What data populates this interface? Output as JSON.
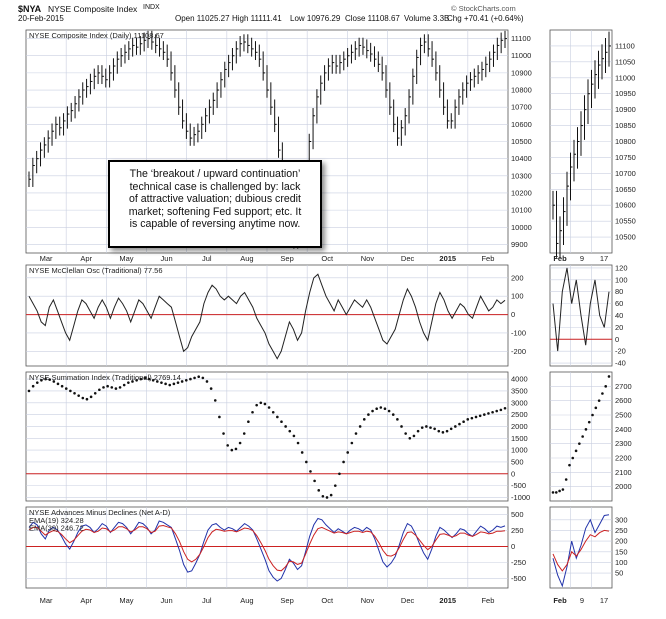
{
  "header": {
    "symbol": "$NYA",
    "name": "NYSE Composite Index",
    "exchange": "INDX",
    "date": "20-Feb-2015",
    "source": "© StockCharts.com",
    "quote": {
      "open": "Open 11025.27",
      "high": "High 11111.41",
      "low": "Low 10976.29",
      "close": "Close 11108.67",
      "volume": "Volume 3.3B",
      "change": "Chg +70.41 (+0.64%)"
    }
  },
  "annotation": {
    "lines": [
      "The ‘breakout / upward continuation’",
      "technical case is challenged by: lack",
      "of attractive valuation; dubious credit",
      "market; softening Fed support; etc. It",
      "is capable of reversing anytime now."
    ]
  },
  "colors": {
    "grid": "#c9cfe0",
    "price": "#111111",
    "zero_line": "#cc2222",
    "ema19": "#2233aa",
    "ema39": "#cc2222",
    "ad": "#2233aa"
  },
  "chart_data": [
    {
      "type": "ohlc",
      "title": "NYSE Composite Index (Daily) 11108.67",
      "months": [
        "Mar",
        "Apr",
        "May",
        "Jun",
        "Jul",
        "Aug",
        "Sep",
        "Oct",
        "Nov",
        "Dec",
        "2015",
        "Feb"
      ],
      "ylim": [
        9850,
        11150
      ],
      "yticks": [
        9900,
        10000,
        10100,
        10200,
        10300,
        10400,
        10500,
        10600,
        10700,
        10800,
        10900,
        11000,
        11100
      ],
      "close_series": [
        10280,
        10360,
        10400,
        10450,
        10480,
        10520,
        10560,
        10600,
        10580,
        10620,
        10660,
        10680,
        10720,
        10760,
        10800,
        10820,
        10850,
        10880,
        10900,
        10880,
        10860,
        10900,
        10940,
        10980,
        11000,
        11020,
        11040,
        11060,
        11050,
        11070,
        11090,
        11100,
        11080,
        11060,
        11040,
        11020,
        10980,
        10900,
        10800,
        10700,
        10620,
        10560,
        10520,
        10540,
        10560,
        10600,
        10650,
        10700,
        10740,
        10800,
        10860,
        10920,
        10960,
        11000,
        11040,
        11070,
        11080,
        11060,
        11040,
        11020,
        10980,
        10900,
        10800,
        10700,
        10600,
        10450,
        10300,
        10150,
        10000,
        9920,
        9960,
        10100,
        10300,
        10500,
        10650,
        10760,
        10840,
        10900,
        10940,
        10960,
        10940,
        10960,
        10980,
        11000,
        11020,
        11040,
        11060,
        11050,
        11030,
        11010,
        10980,
        10950,
        10900,
        10800,
        10700,
        10600,
        10520,
        10580,
        10650,
        10760,
        10880,
        10990,
        11060,
        11080,
        11040,
        10980,
        10900,
        10800,
        10700,
        10620,
        10620,
        10700,
        10760,
        10800,
        10840,
        10860,
        10880,
        10900,
        10920,
        10950,
        10980,
        11020,
        11060,
        11090,
        11100
      ]
    },
    {
      "type": "line",
      "title": "NYSE McClellan Osc (Traditional) 77.56",
      "ylim": [
        -280,
        270
      ],
      "yticks": [
        -200,
        -100,
        0,
        100,
        200
      ],
      "zero_line": 0,
      "values": [
        100,
        60,
        20,
        -40,
        -60,
        40,
        80,
        20,
        -40,
        -100,
        -140,
        -60,
        20,
        80,
        60,
        20,
        -20,
        40,
        80,
        40,
        -20,
        40,
        90,
        60,
        20,
        -40,
        20,
        80,
        60,
        20,
        -20,
        40,
        100,
        80,
        60,
        40,
        -40,
        -120,
        -200,
        -180,
        -120,
        -80,
        -40,
        60,
        120,
        160,
        140,
        100,
        80,
        100,
        80,
        60,
        100,
        120,
        80,
        40,
        -20,
        -60,
        -100,
        -160,
        -200,
        -240,
        -200,
        -120,
        -40,
        -80,
        -140,
        -100,
        20,
        120,
        200,
        220,
        160,
        100,
        60,
        20,
        80,
        40,
        0,
        40,
        80,
        60,
        40,
        80,
        40,
        -20,
        -80,
        -140,
        -160,
        -120,
        -80,
        0,
        80,
        140,
        100,
        40,
        -40,
        -100,
        -140,
        -40,
        60,
        120,
        80,
        20,
        -20,
        20,
        60,
        40,
        0,
        -20,
        40,
        100,
        60,
        20,
        40,
        80,
        60,
        78
      ]
    },
    {
      "type": "scatter",
      "title": "NYSE Summation Index (Traditional) 2769.14",
      "ylim": [
        -1150,
        4300
      ],
      "yticks": [
        -1000,
        -500,
        0,
        500,
        1000,
        1500,
        2000,
        2500,
        3000,
        3500,
        4000
      ],
      "zero_line": 0,
      "values": [
        3500,
        3700,
        3850,
        3950,
        4000,
        3980,
        3900,
        3800,
        3700,
        3600,
        3500,
        3400,
        3300,
        3200,
        3150,
        3250,
        3400,
        3550,
        3650,
        3700,
        3650,
        3600,
        3650,
        3750,
        3850,
        3900,
        3950,
        4000,
        4050,
        4000,
        3950,
        3900,
        3850,
        3800,
        3750,
        3800,
        3850,
        3900,
        3950,
        4000,
        4050,
        4100,
        4050,
        3900,
        3600,
        3100,
        2400,
        1700,
        1200,
        1000,
        1050,
        1300,
        1700,
        2200,
        2600,
        2900,
        3000,
        2950,
        2800,
        2600,
        2400,
        2200,
        2000,
        1800,
        1600,
        1300,
        900,
        500,
        100,
        -300,
        -700,
        -950,
        -1000,
        -900,
        -500,
        0,
        500,
        900,
        1300,
        1700,
        2000,
        2300,
        2500,
        2650,
        2750,
        2800,
        2750,
        2650,
        2500,
        2300,
        2000,
        1700,
        1500,
        1600,
        1800,
        1950,
        2000,
        1950,
        1900,
        1800,
        1750,
        1800,
        1900,
        2000,
        2100,
        2200,
        2300,
        2350,
        2400,
        2450,
        2500,
        2550,
        2600,
        2650,
        2700,
        2769
      ]
    },
    {
      "type": "line",
      "title": "NYSE Advances Minus Declines (Net A-D)",
      "ylim": [
        -650,
        620
      ],
      "yticks": [
        -500,
        -250,
        0,
        250,
        500
      ],
      "zero_line": 0,
      "series": [
        {
          "name": "EMA(19) 324.28",
          "color": "#2233aa",
          "values": [
            300,
            380,
            340,
            200,
            120,
            260,
            300,
            260,
            160,
            40,
            -40,
            80,
            220,
            320,
            340,
            300,
            220,
            280,
            360,
            320,
            220,
            300,
            380,
            360,
            300,
            200,
            280,
            380,
            360,
            300,
            200,
            260,
            400,
            380,
            340,
            300,
            120,
            -60,
            -280,
            -400,
            -380,
            -260,
            -120,
            80,
            260,
            340,
            360,
            300,
            260,
            300,
            280,
            240,
            300,
            360,
            320,
            260,
            120,
            -40,
            -200,
            -380,
            -480,
            -540,
            -500,
            -360,
            -200,
            -260,
            -360,
            -300,
            -80,
            160,
            340,
            440,
            420,
            340,
            280,
            220,
            280,
            240,
            200,
            260,
            300,
            280,
            240,
            300,
            260,
            120,
            -60,
            -240,
            -320,
            -260,
            -160,
            20,
            220,
            360,
            320,
            200,
            40,
            -100,
            -200,
            -40,
            160,
            300,
            260,
            200,
            140,
            200,
            280,
            260,
            200,
            160,
            240,
            320,
            280,
            220,
            260,
            320,
            300,
            324
          ]
        },
        {
          "name": "EMA(39) 246.72",
          "color": "#cc2222",
          "values": [
            260,
            300,
            300,
            240,
            180,
            220,
            250,
            240,
            190,
            120,
            60,
            100,
            170,
            240,
            270,
            260,
            220,
            240,
            290,
            280,
            230,
            260,
            310,
            310,
            280,
            230,
            260,
            310,
            310,
            280,
            220,
            240,
            320,
            330,
            310,
            290,
            200,
            80,
            -80,
            -200,
            -240,
            -200,
            -120,
            0,
            140,
            230,
            270,
            260,
            240,
            250,
            250,
            230,
            260,
            290,
            280,
            250,
            170,
            60,
            -60,
            -200,
            -300,
            -370,
            -380,
            -320,
            -230,
            -240,
            -280,
            -260,
            -120,
            40,
            180,
            280,
            300,
            270,
            240,
            210,
            230,
            220,
            200,
            220,
            240,
            240,
            220,
            240,
            230,
            160,
            60,
            -60,
            -140,
            -150,
            -120,
            -20,
            110,
            220,
            230,
            180,
            100,
            20,
            -50,
            0,
            100,
            190,
            200,
            180,
            150,
            170,
            210,
            210,
            180,
            160,
            190,
            230,
            220,
            200,
            210,
            240,
            240,
            247
          ]
        }
      ]
    }
  ],
  "zoom": {
    "months": [
      "Feb",
      "9",
      "17"
    ],
    "price": {
      "ylim": [
        10450,
        11150
      ],
      "yticks": [
        10500,
        10550,
        10600,
        10650,
        10700,
        10750,
        10800,
        10850,
        10900,
        10950,
        11000,
        11050,
        11100
      ],
      "values": [
        10600,
        10480,
        10520,
        10580,
        10660,
        10720,
        10760,
        10800,
        10850,
        10900,
        10950,
        10980,
        11010,
        11040,
        11060,
        11080,
        11100
      ]
    },
    "osc": {
      "ylim": [
        -45,
        125
      ],
      "yticks": [
        -40,
        -20,
        0,
        20,
        40,
        60,
        80,
        100,
        120
      ],
      "values": [
        60,
        -20,
        80,
        120,
        60,
        100,
        40,
        -10,
        60,
        100,
        40,
        20,
        80
      ]
    },
    "summ": {
      "ylim": [
        1900,
        2800
      ],
      "yticks": [
        2000,
        2100,
        2200,
        2300,
        2400,
        2500,
        2600,
        2700
      ],
      "values": [
        1960,
        1960,
        1970,
        1980,
        2050,
        2150,
        2200,
        2250,
        2300,
        2350,
        2400,
        2450,
        2500,
        2550,
        2600,
        2650,
        2700,
        2769
      ]
    },
    "ad": {
      "ylim": [
        -20,
        360
      ],
      "yticks": [
        50,
        100,
        150,
        200,
        250,
        300
      ],
      "ema19": [
        120,
        40,
        -10,
        80,
        200,
        120,
        180,
        260,
        300,
        240,
        280,
        320,
        324
      ],
      "ema39": [
        140,
        90,
        60,
        90,
        150,
        130,
        160,
        200,
        230,
        220,
        240,
        250,
        247
      ]
    }
  }
}
